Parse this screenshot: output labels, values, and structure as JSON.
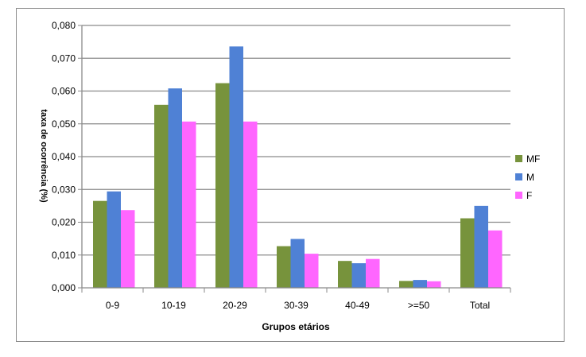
{
  "chart_data": {
    "type": "bar",
    "categories": [
      "0-9",
      "10-19",
      "20-29",
      "30-39",
      "40-49",
      ">=50",
      "Total"
    ],
    "series": [
      {
        "name": "MF",
        "color": "#77933c",
        "values": [
          0.0265,
          0.0558,
          0.0624,
          0.0127,
          0.0082,
          0.0021,
          0.0212
        ]
      },
      {
        "name": "M",
        "color": "#4f81d5",
        "values": [
          0.0294,
          0.0608,
          0.0736,
          0.0149,
          0.0075,
          0.0024,
          0.025
        ]
      },
      {
        "name": "F",
        "color": "#ff66ff",
        "values": [
          0.0237,
          0.0507,
          0.0507,
          0.0104,
          0.0088,
          0.002,
          0.0175
        ]
      }
    ],
    "yticks": [
      "0,000",
      "0,010",
      "0,020",
      "0,030",
      "0,040",
      "0,050",
      "0,060",
      "0,070",
      "0,080"
    ],
    "ylim": [
      0,
      0.08
    ],
    "xlabel": "Grupos etários",
    "ylabel": "taxa de ocorrência (%)",
    "grid": true,
    "legend_position": "right"
  }
}
